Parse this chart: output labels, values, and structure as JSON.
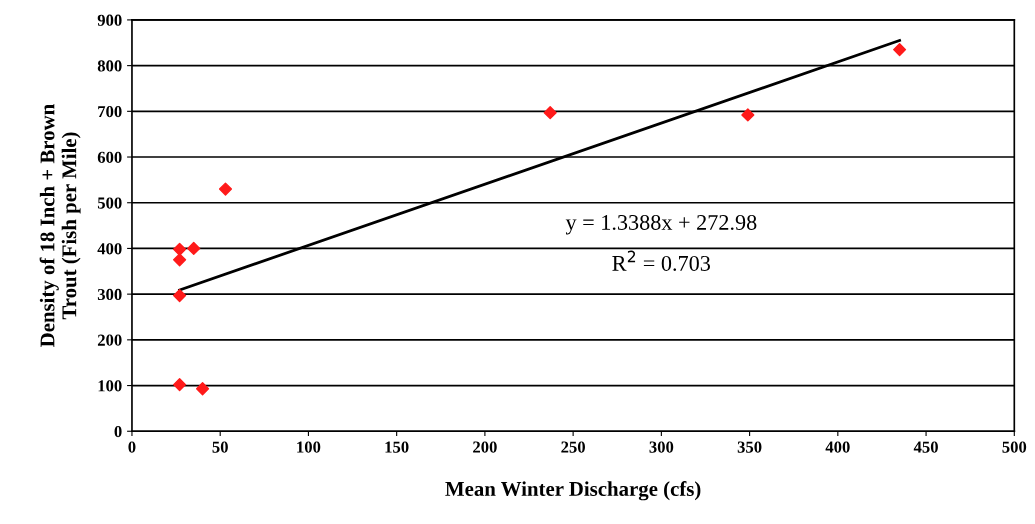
{
  "chart_data": {
    "type": "scatter",
    "xlabel": "Mean Winter Discharge (cfs)",
    "ylabel": "Density of 18 Inch + Brown\nTrout (Fish per Mile)",
    "series": [
      {
        "color": "#ff1a1a",
        "marker": "diamond",
        "x": [
          27,
          27,
          35,
          27,
          53,
          27,
          40,
          237,
          349,
          435
        ],
        "values": [
          398,
          375,
          400,
          297,
          530,
          102,
          93,
          697,
          692,
          835
        ]
      },
      {
        "type": "line",
        "color": "#000000",
        "marker": "none",
        "line_style": "solid",
        "x": [
          27,
          435
        ],
        "values": [
          309,
          855
        ]
      }
    ],
    "xlim": [
      0,
      500
    ],
    "xticks": [
      0,
      50,
      100,
      150,
      200,
      250,
      300,
      350,
      400,
      450,
      500
    ],
    "ylim": [
      0,
      900
    ],
    "yticks": [
      0,
      100,
      200,
      300,
      400,
      500,
      600,
      700,
      800,
      900
    ],
    "grid": "y",
    "legend": false,
    "annotations": [
      "y = 1.3388x + 272.98",
      "R$^{2}$ = 0.703"
    ]
  }
}
